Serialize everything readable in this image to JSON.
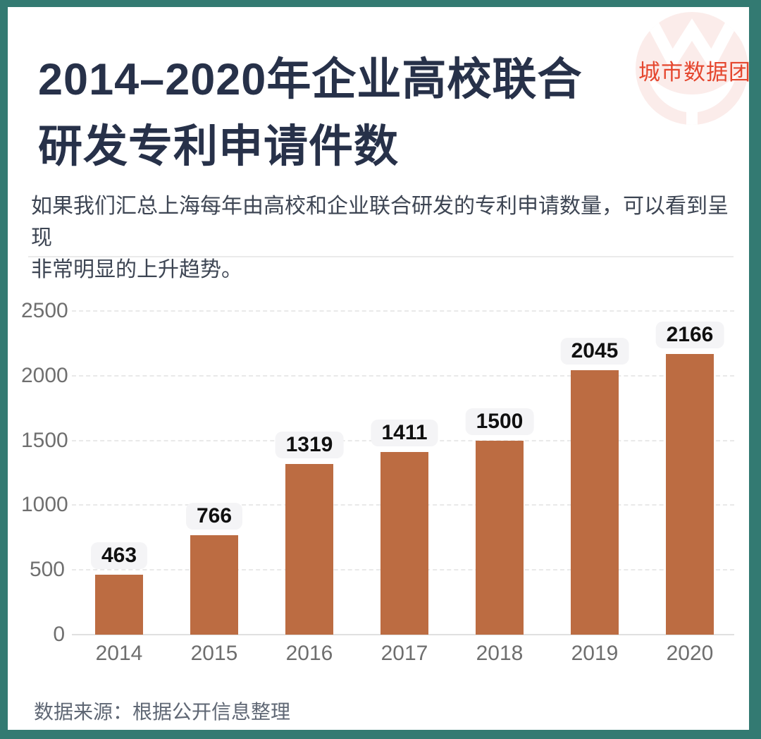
{
  "header": {
    "title_line1": "2014–2020年企业高校联合",
    "title_line2": "研发专利申请件数",
    "logo_text": "城市数据团"
  },
  "intro": {
    "line1": "如果我们汇总上海每年由高校和企业联合研发的专利申请数量，可以看到呈现",
    "line2": "非常明显的上升趋势。"
  },
  "footer": {
    "source": "数据来源：根据公开信息整理"
  },
  "colors": {
    "frame_teal": "#337a72",
    "title_navy": "#273149",
    "bar_brown": "#bc6c42",
    "logo_red": "#e5472f",
    "logo_pink": "#fbecea",
    "value_label_bg": "#f4f4f6"
  },
  "chart_data": {
    "type": "bar",
    "title": "2014–2020年企业高校联合研发专利申请件数",
    "categories": [
      "2014",
      "2015",
      "2016",
      "2017",
      "2018",
      "2019",
      "2020"
    ],
    "values": [
      463,
      766,
      1319,
      1411,
      1500,
      2045,
      2166
    ],
    "xlabel": "",
    "ylabel": "",
    "ylim": [
      0,
      2500
    ],
    "yticks": [
      0,
      500,
      1000,
      1500,
      2000,
      2500
    ],
    "grid": "horizontal-dashed",
    "legend": "none",
    "bar_color": "#bc6c42",
    "value_labels": true
  }
}
